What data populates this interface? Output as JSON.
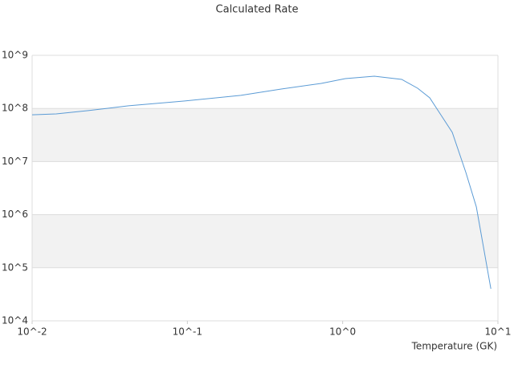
{
  "chart_data": {
    "type": "line",
    "title": "Calculated Rate",
    "x_label": "Temperature (GK)",
    "log_x": true,
    "log_y": true,
    "xlim": [
      0.01,
      10
    ],
    "ylim": [
      10000,
      1000000000
    ],
    "xticks": [
      {
        "value": 0.01,
        "label": "10^-2"
      },
      {
        "value": 0.1,
        "label": "10^-1"
      },
      {
        "value": 1,
        "label": "10^0"
      },
      {
        "value": 10,
        "label": "10^1"
      }
    ],
    "yticks": [
      {
        "value": 10000,
        "label": "10^4"
      },
      {
        "value": 100000,
        "label": "10^5"
      },
      {
        "value": 1000000,
        "label": "10^6"
      },
      {
        "value": 10000000,
        "label": "10^7"
      },
      {
        "value": 100000000,
        "label": "10^8"
      },
      {
        "value": 1000000000,
        "label": "10^9"
      }
    ],
    "band_color": "#f2f2f2",
    "series": [
      {
        "color": "#5b9bd5",
        "x": [
          0.01,
          0.0143,
          0.023,
          0.0418,
          0.0962,
          0.221,
          0.402,
          0.728,
          1.04,
          1.6,
          2.4,
          3.04,
          3.64,
          4.35,
          5.08,
          6.22,
          7.26,
          9.0
        ],
        "values": [
          76000000,
          79000000,
          91000000,
          112000000,
          138000000,
          176000000,
          232000000,
          296000000,
          365000000,
          405000000,
          352000000,
          240000000,
          158000000,
          71000000,
          35500000,
          6200000,
          1400000,
          40000
        ]
      }
    ]
  }
}
